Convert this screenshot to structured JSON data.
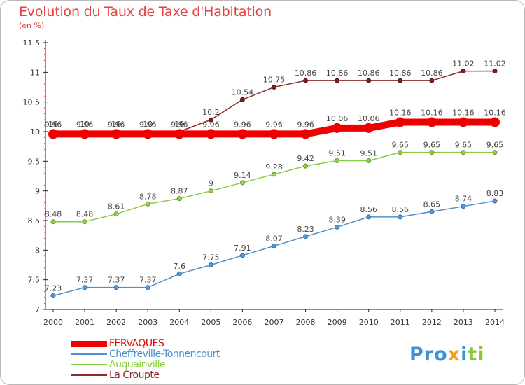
{
  "title": "Evolution du Taux de Taxe d'Habitation",
  "unit_label": "(en %)",
  "logo": {
    "parts": [
      {
        "text": "Pro",
        "color": "#3d8fd6"
      },
      {
        "text": "x",
        "color": "#f0a020"
      },
      {
        "text": "i",
        "color": "#3d8fd6"
      },
      {
        "text": "ti",
        "color": "#8cc63f"
      }
    ]
  },
  "chart_data": {
    "type": "line",
    "x": [
      "2000",
      "2001",
      "2002",
      "2003",
      "2004",
      "2005",
      "2006",
      "2007",
      "2008",
      "2009",
      "2010",
      "2011",
      "2012",
      "2013",
      "2014"
    ],
    "ylim": [
      7,
      11.5
    ],
    "yticks": [
      7,
      7.5,
      8,
      8.5,
      9,
      9.5,
      10,
      10.5,
      11,
      11.5
    ],
    "ytick_labels": [
      "7",
      "7.5",
      "8",
      "8.5",
      "9",
      "9.5",
      "10",
      "10.5",
      "11",
      "11.5"
    ],
    "grid": false,
    "legend_position": "bottom-left",
    "series": [
      {
        "name": "FERVAQUES",
        "color": "#ee0000",
        "values": [
          9.96,
          9.96,
          9.96,
          9.96,
          9.96,
          9.96,
          9.96,
          9.96,
          9.96,
          10.06,
          10.06,
          10.16,
          10.16,
          10.16,
          10.16
        ],
        "labels": [
          "9.96",
          "9.96",
          "9.96",
          "9.96",
          "9.96",
          "9.96",
          "9.96",
          "9.96",
          "9.96",
          "10.06",
          "10.06",
          "10.16",
          "10.16",
          "10.16",
          "10.16"
        ]
      },
      {
        "name": "Cheffreville-Tonnencourt",
        "color": "#4f90cd",
        "values": [
          7.23,
          7.37,
          7.37,
          7.37,
          7.6,
          7.75,
          7.91,
          8.07,
          8.23,
          8.39,
          8.56,
          8.56,
          8.65,
          8.74,
          8.83
        ],
        "labels": [
          "7.23",
          "7.37",
          "7.37",
          "7.37",
          "7.6",
          "7.75",
          "7.91",
          "8.07",
          "8.23",
          "8.39",
          "8.56",
          "8.56",
          "8.65",
          "8.74",
          "8.83"
        ]
      },
      {
        "name": "Auquainville",
        "color": "#88cc44",
        "values": [
          8.48,
          8.48,
          8.61,
          8.78,
          8.87,
          9.0,
          9.14,
          9.28,
          9.42,
          9.51,
          9.51,
          9.65,
          9.65,
          9.65,
          9.65
        ],
        "labels": [
          "8.48",
          "8.48",
          "8.61",
          "8.78",
          "8.87",
          "9",
          "9.14",
          "9.28",
          "9.42",
          "9.51",
          "9.51",
          "9.65",
          "9.65",
          "9.65",
          "9.65"
        ]
      },
      {
        "name": "La Croupte",
        "color": "#8b2a2a",
        "values": [
          10.0,
          10.0,
          10.0,
          10.0,
          10.0,
          10.2,
          10.54,
          10.75,
          10.86,
          10.86,
          10.86,
          10.86,
          10.86,
          11.02,
          11.02
        ],
        "labels": [
          "10",
          "10",
          "10",
          "10",
          "10",
          "10.2",
          "10.54",
          "10.75",
          "10.86",
          "10.86",
          "10.86",
          "10.86",
          "10.86",
          "11.02",
          "11.02"
        ]
      }
    ]
  }
}
